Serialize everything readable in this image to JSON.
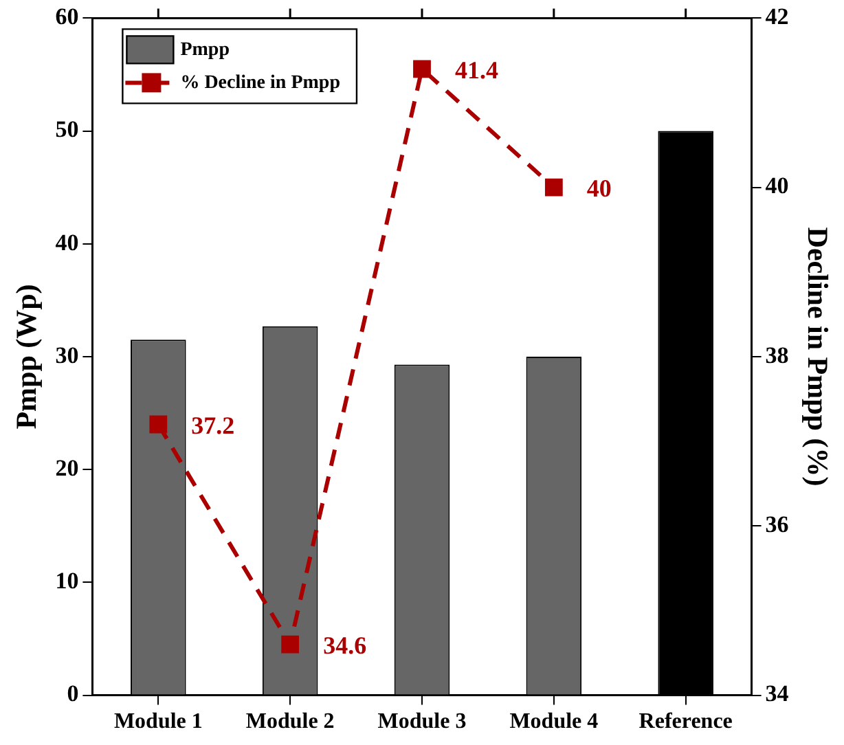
{
  "chart_data": {
    "type": "bar",
    "categories": [
      "Module 1",
      "Module 2",
      "Module 3",
      "Module 4",
      "Reference"
    ],
    "series": [
      {
        "name": "Pmpp",
        "color": "#666666",
        "colors": [
          "#666666",
          "#666666",
          "#666666",
          "#666666",
          "#000000"
        ],
        "values": [
          31.5,
          32.7,
          29.3,
          30.0,
          50
        ]
      },
      {
        "name": "% Decline in Pmpp",
        "type": "line",
        "axis": "y2",
        "color": "#aa0000",
        "values": [
          37.2,
          34.6,
          41.4,
          40,
          null
        ],
        "value_labels": [
          "37.2",
          "34.6",
          "41.4",
          "40",
          null
        ]
      }
    ],
    "ylabel": "Pmpp (Wp)",
    "y2label": "Decline in Pmpp (%)",
    "ylim": [
      0,
      60
    ],
    "yticks": [
      0,
      10,
      20,
      30,
      40,
      50,
      60
    ],
    "y2lim": [
      34,
      42
    ],
    "y2ticks": [
      34,
      36,
      38,
      40,
      42
    ],
    "grid": false,
    "legend": "top left",
    "marker": "square",
    "line_style": "dashed"
  }
}
